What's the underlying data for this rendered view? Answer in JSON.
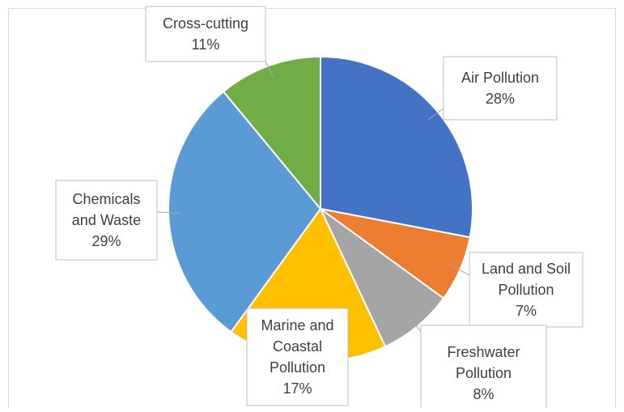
{
  "chart_data": {
    "type": "pie",
    "title": "",
    "slices": [
      {
        "label": "Air Pollution",
        "value": 28,
        "value_label": "28%",
        "color": "#4472C4"
      },
      {
        "label": "Land and Soil Pollution",
        "value": 7,
        "value_label": "7%",
        "color": "#ED7D31"
      },
      {
        "label": "Freshwater Pollution",
        "value": 8,
        "value_label": "8%",
        "color": "#A5A5A5"
      },
      {
        "label": "Marine and Coastal Pollution",
        "value": 17,
        "value_label": "17%",
        "color": "#FFC000"
      },
      {
        "label": "Chemicals and Waste",
        "value": 29,
        "value_label": "29%",
        "color": "#5B9BD5"
      },
      {
        "label": "Cross-cutting",
        "value": 11,
        "value_label": "11%",
        "color": "#70AD47"
      }
    ],
    "start_angle": "12 o'clock",
    "direction": "clockwise",
    "legend": "none",
    "data_labels": "callouts"
  }
}
